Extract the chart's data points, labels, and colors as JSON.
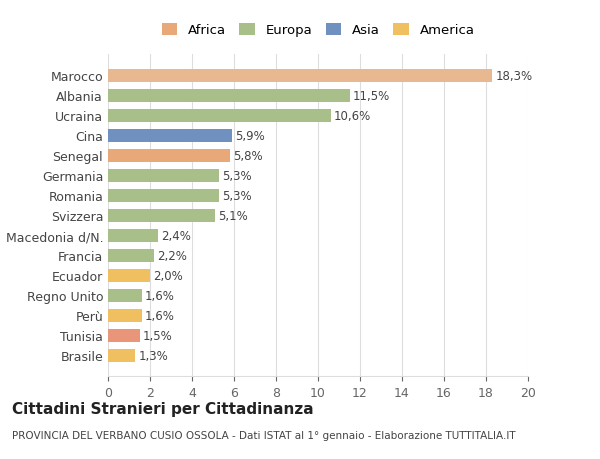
{
  "categories": [
    "Brasile",
    "Tunisia",
    "Perù",
    "Regno Unito",
    "Ecuador",
    "Francia",
    "Macedonia d/N.",
    "Svizzera",
    "Romania",
    "Germania",
    "Senegal",
    "Cina",
    "Ucraina",
    "Albania",
    "Marocco"
  ],
  "values": [
    1.3,
    1.5,
    1.6,
    1.6,
    2.0,
    2.2,
    2.4,
    5.1,
    5.3,
    5.3,
    5.8,
    5.9,
    10.6,
    11.5,
    18.3
  ],
  "labels": [
    "1,3%",
    "1,5%",
    "1,6%",
    "1,6%",
    "2,0%",
    "2,2%",
    "2,4%",
    "5,1%",
    "5,3%",
    "5,3%",
    "5,8%",
    "5,9%",
    "10,6%",
    "11,5%",
    "18,3%"
  ],
  "colors": [
    "#f0c060",
    "#e8957a",
    "#f0c060",
    "#a8bf8a",
    "#f0c060",
    "#a8bf8a",
    "#a8bf8a",
    "#a8bf8a",
    "#a8bf8a",
    "#a8bf8a",
    "#e8a878",
    "#7090c0",
    "#a8bf8a",
    "#a8bf8a",
    "#e8b890"
  ],
  "legend_labels": [
    "Africa",
    "Europa",
    "Asia",
    "America"
  ],
  "legend_colors": [
    "#e8a878",
    "#a8bf8a",
    "#7090c0",
    "#f0c060"
  ],
  "title": "Cittadini Stranieri per Cittadinanza",
  "subtitle": "PROVINCIA DEL VERBANO CUSIO OSSOLA - Dati ISTAT al 1° gennaio - Elaborazione TUTTITALIA.IT",
  "xlim": [
    0,
    20
  ],
  "xticks": [
    0,
    2,
    4,
    6,
    8,
    10,
    12,
    14,
    16,
    18,
    20
  ],
  "bg_color": "#ffffff",
  "grid_color": "#dddddd"
}
